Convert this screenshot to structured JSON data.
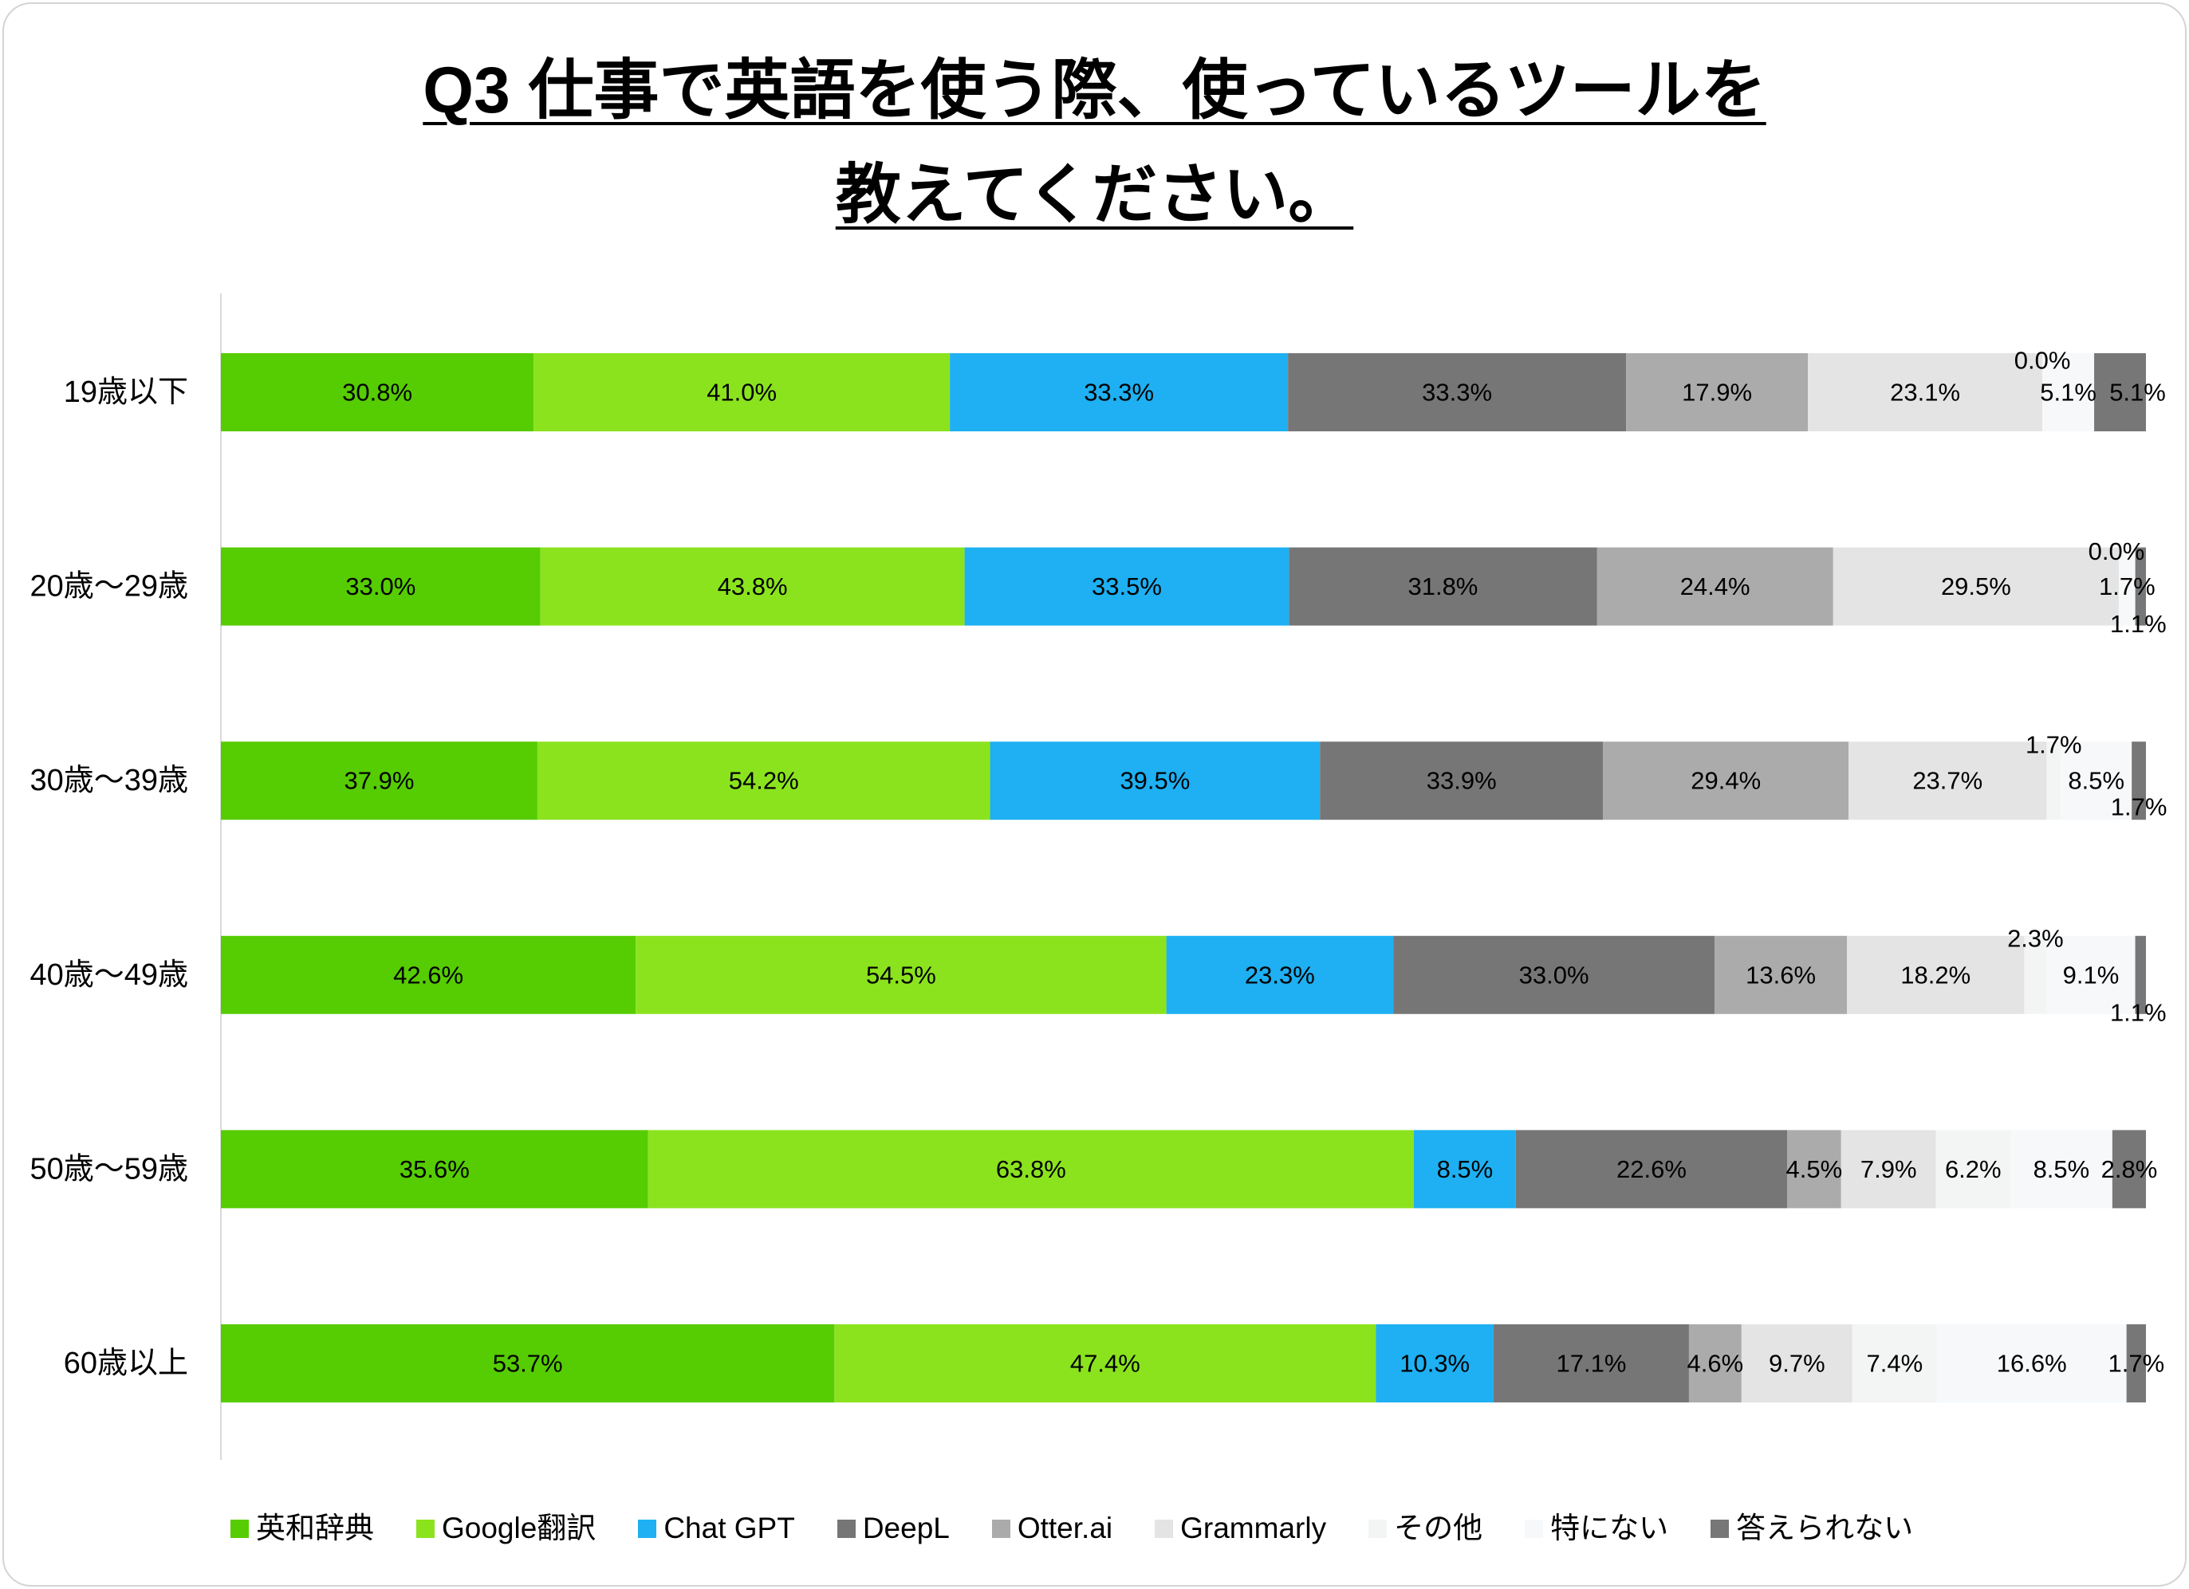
{
  "chart_data": {
    "type": "bar",
    "orientation": "horizontal",
    "stacked": true,
    "normalized_to_row_total": true,
    "title": [
      "Q3 仕事で英語を使う際、使っているツールを",
      "教えてください。"
    ],
    "categories": [
      "19歳以下",
      "20歳〜29歳",
      "30歳〜39歳",
      "40歳〜49歳",
      "50歳〜59歳",
      "60歳以上"
    ],
    "value_suffix": "%",
    "series": [
      {
        "name": "英和辞典",
        "color": "#56CC02",
        "values": [
          30.8,
          33.0,
          37.9,
          42.6,
          35.6,
          53.7
        ]
      },
      {
        "name": "Google翻訳",
        "color": "#8BE31E",
        "values": [
          41.0,
          43.8,
          54.2,
          54.5,
          63.8,
          47.4
        ]
      },
      {
        "name": "Chat GPT",
        "color": "#1EB0F2",
        "values": [
          33.3,
          33.5,
          39.5,
          23.3,
          8.5,
          10.3
        ]
      },
      {
        "name": "DeepL",
        "color": "#767676",
        "values": [
          33.3,
          31.8,
          33.9,
          33.0,
          22.6,
          17.1
        ]
      },
      {
        "name": "Otter.ai",
        "color": "#ABABAB",
        "values": [
          17.9,
          24.4,
          29.4,
          13.6,
          4.5,
          4.6
        ]
      },
      {
        "name": "Grammarly",
        "color": "#E4E4E4",
        "values": [
          23.1,
          29.5,
          23.7,
          18.2,
          7.9,
          9.7
        ]
      },
      {
        "name": "その他",
        "color": "#F3F4F4",
        "values": [
          0.0,
          0.0,
          1.7,
          2.3,
          6.2,
          7.4
        ]
      },
      {
        "name": "特にない",
        "color": "#F6F8FA",
        "values": [
          5.1,
          1.7,
          8.5,
          9.1,
          8.5,
          16.6
        ]
      },
      {
        "name": "答えられない",
        "color": "#777777",
        "values": [
          5.1,
          1.1,
          1.7,
          1.1,
          2.8,
          1.7
        ]
      }
    ],
    "legend": "bottom",
    "grid": false
  }
}
